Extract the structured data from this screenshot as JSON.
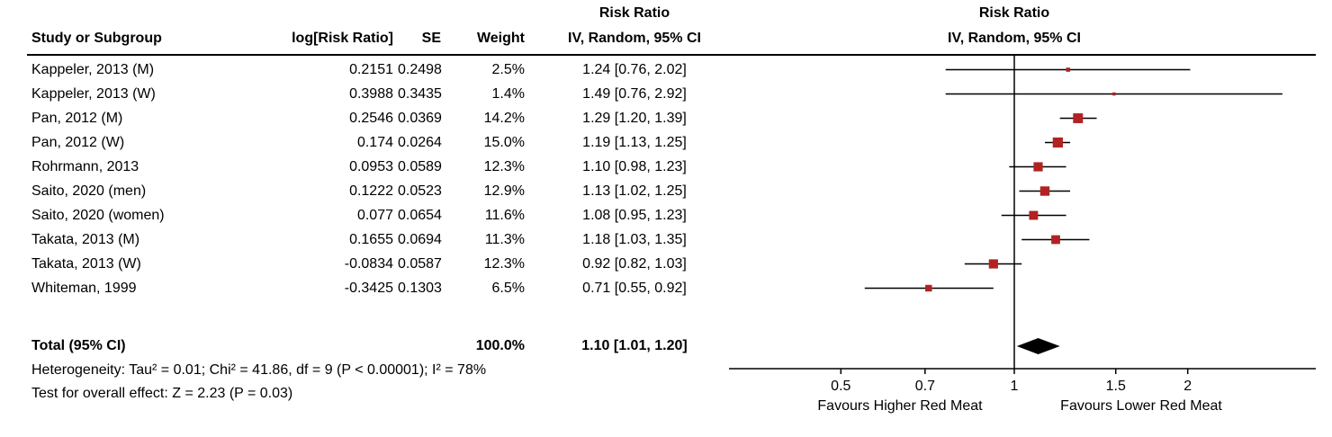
{
  "table": {
    "col1_header": "Study or Subgroup",
    "col2_header": "log[Risk Ratio]",
    "col3_header": "SE",
    "col4_header": "Weight",
    "col5_header_line1": "Risk Ratio",
    "col5_header_line2": "IV, Random, 95% CI",
    "plot_header_line1": "Risk Ratio",
    "plot_header_line2": "IV, Random, 95% CI"
  },
  "chart_data": {
    "type": "forest",
    "effect_measure": "Risk Ratio",
    "model": "IV, Random, 95% CI",
    "scale": "log",
    "studies": [
      {
        "name": "Kappeler, 2013 (M)",
        "log_rr": 0.2151,
        "se": 0.2498,
        "weight_pct": 2.5,
        "rr": 1.24,
        "ci_low": 0.76,
        "ci_high": 2.02
      },
      {
        "name": "Kappeler, 2013 (W)",
        "log_rr": 0.3988,
        "se": 0.3435,
        "weight_pct": 1.4,
        "rr": 1.49,
        "ci_low": 0.76,
        "ci_high": 2.92
      },
      {
        "name": "Pan, 2012 (M)",
        "log_rr": 0.2546,
        "se": 0.0369,
        "weight_pct": 14.2,
        "rr": 1.29,
        "ci_low": 1.2,
        "ci_high": 1.39
      },
      {
        "name": "Pan, 2012 (W)",
        "log_rr": 0.174,
        "se": 0.0264,
        "weight_pct": 15.0,
        "rr": 1.19,
        "ci_low": 1.13,
        "ci_high": 1.25
      },
      {
        "name": "Rohrmann, 2013",
        "log_rr": 0.0953,
        "se": 0.0589,
        "weight_pct": 12.3,
        "rr": 1.1,
        "ci_low": 0.98,
        "ci_high": 1.23
      },
      {
        "name": "Saito, 2020 (men)",
        "log_rr": 0.1222,
        "se": 0.0523,
        "weight_pct": 12.9,
        "rr": 1.13,
        "ci_low": 1.02,
        "ci_high": 1.25
      },
      {
        "name": "Saito, 2020 (women)",
        "log_rr": 0.077,
        "se": 0.0654,
        "weight_pct": 11.6,
        "rr": 1.08,
        "ci_low": 0.95,
        "ci_high": 1.23
      },
      {
        "name": "Takata, 2013 (M)",
        "log_rr": 0.1655,
        "se": 0.0694,
        "weight_pct": 11.3,
        "rr": 1.18,
        "ci_low": 1.03,
        "ci_high": 1.35
      },
      {
        "name": "Takata, 2013 (W)",
        "log_rr": -0.0834,
        "se": 0.0587,
        "weight_pct": 12.3,
        "rr": 0.92,
        "ci_low": 0.82,
        "ci_high": 1.03
      },
      {
        "name": "Whiteman, 1999",
        "log_rr": -0.3425,
        "se": 0.1303,
        "weight_pct": 6.5,
        "rr": 0.71,
        "ci_low": 0.55,
        "ci_high": 0.92
      }
    ],
    "total": {
      "label": "Total (95% CI)",
      "weight_pct": 100.0,
      "rr": 1.1,
      "ci_low": 1.01,
      "ci_high": 1.2
    },
    "axis": {
      "ticks": [
        0.5,
        0.7,
        1,
        1.5,
        2
      ]
    },
    "footer": {
      "heterogeneity": "Heterogeneity: Tau² = 0.01; Chi² = 41.86, df = 9 (P < 0.00001); I² = 78%",
      "overall_effect": "Test for overall effect: Z = 2.23 (P = 0.03)"
    },
    "favours_left": "Favours Higher Red Meat",
    "favours_right": "Favours Lower Red Meat",
    "marker_color": "#b22222",
    "line_color": "#000000"
  }
}
